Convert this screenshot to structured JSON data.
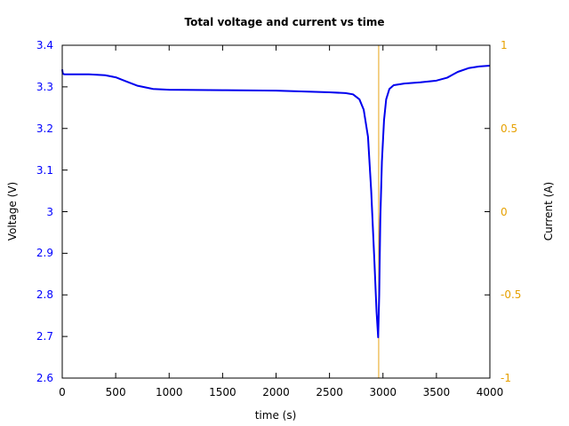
{
  "chart_data": {
    "type": "line",
    "title": "Total voltage and current vs time",
    "xlabel": "time (s)",
    "ylabel": "Voltage (V)",
    "y2label": "Current (A)",
    "xlim": [
      0,
      4000
    ],
    "ylim": [
      2.6,
      3.4
    ],
    "y2lim": [
      -1,
      1
    ],
    "grid": false,
    "legend": null,
    "x_ticks": [
      "0",
      "500",
      "1000",
      "1500",
      "2000",
      "2500",
      "3000",
      "3500",
      "4000"
    ],
    "y_ticks": [
      "2.6",
      "2.7",
      "2.8",
      "2.9",
      "3",
      "3.1",
      "3.2",
      "3.3",
      "3.4"
    ],
    "y2_ticks": [
      "-1",
      "-0.5",
      "0",
      "0.5",
      "1"
    ],
    "colors": {
      "voltage": "#0000ee",
      "current": "#e8a317",
      "left_axis_text": "#0000ff",
      "right_axis_text": "#e6a000"
    },
    "series": [
      {
        "name": "Voltage",
        "axis": "left",
        "color": "#0000ee",
        "x": [
          0,
          5,
          20,
          100,
          250,
          400,
          500,
          600,
          700,
          850,
          1000,
          1500,
          2000,
          2500,
          2650,
          2720,
          2780,
          2820,
          2860,
          2890,
          2920,
          2940,
          2955,
          2965,
          2975,
          2990,
          3010,
          3030,
          3060,
          3100,
          3200,
          3350,
          3500,
          3600,
          3700,
          3800,
          3900,
          4000
        ],
        "values": [
          3.342,
          3.332,
          3.33,
          3.33,
          3.33,
          3.328,
          3.323,
          3.313,
          3.303,
          3.295,
          3.293,
          3.292,
          3.291,
          3.287,
          3.285,
          3.282,
          3.27,
          3.245,
          3.18,
          3.05,
          2.88,
          2.76,
          2.698,
          2.8,
          2.98,
          3.12,
          3.22,
          3.27,
          3.295,
          3.304,
          3.308,
          3.311,
          3.315,
          3.322,
          3.336,
          3.345,
          3.349,
          3.351
        ]
      },
      {
        "name": "Current",
        "axis": "right",
        "color": "#e8a317",
        "x": [
          2960,
          2960
        ],
        "values": [
          -1,
          1
        ],
        "note": "vertical line spanning full right-axis range at t≈2960 s"
      }
    ]
  }
}
